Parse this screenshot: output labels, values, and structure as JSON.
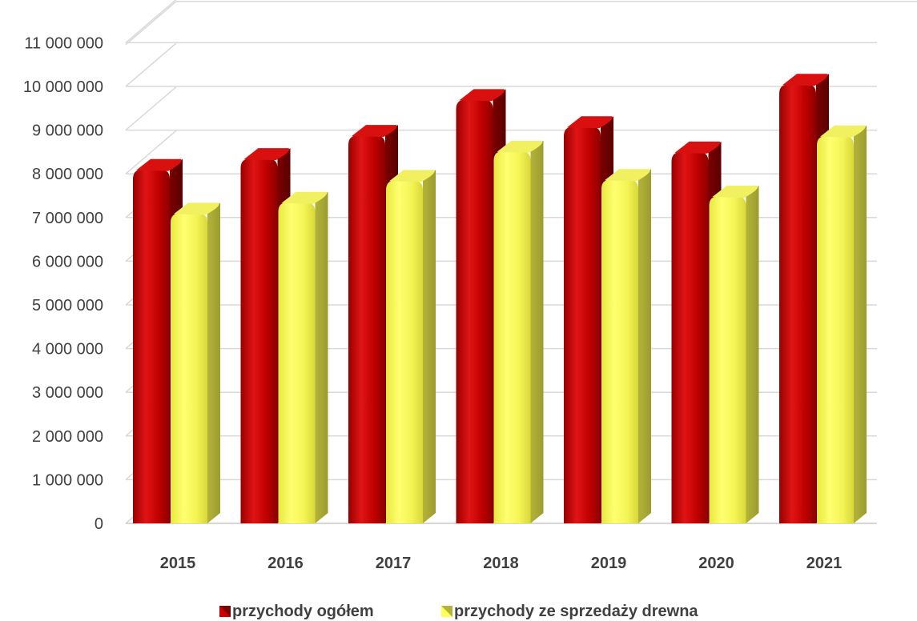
{
  "chart_data": {
    "type": "bar",
    "style": "3d-cylinder",
    "categories": [
      "2015",
      "2016",
      "2017",
      "2018",
      "2019",
      "2020",
      "2021"
    ],
    "series": [
      {
        "name": "przychody ogółem",
        "color": "#cc0000",
        "values": [
          8100000,
          8350000,
          8880000,
          9700000,
          9080000,
          8500000,
          10050000
        ]
      },
      {
        "name": "przychody ze sprzedaży drewna",
        "color": "#ffff55",
        "values": [
          7100000,
          7350000,
          7850000,
          8520000,
          7870000,
          7490000,
          8870000
        ]
      }
    ],
    "y_ticks": [
      "0",
      "1 000 000",
      "2 000 000",
      "3 000 000",
      "4 000 000",
      "5 000 000",
      "6 000 000",
      "7 000 000",
      "8 000 000",
      "9 000 000",
      "10 000 000",
      "11 000 000"
    ],
    "ylim": [
      0,
      12000000
    ],
    "grid": true,
    "legend_position": "bottom"
  }
}
